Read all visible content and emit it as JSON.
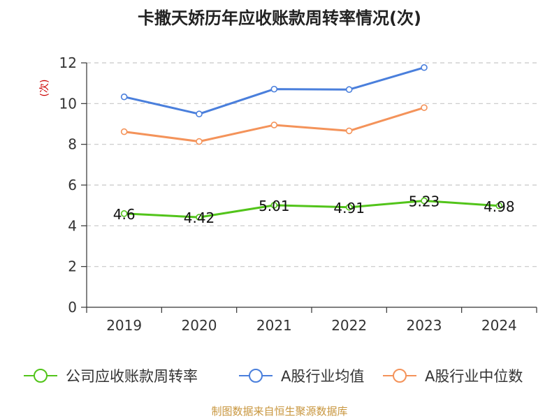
{
  "title": "卡撒天娇历年应收账款周转率情况(次)",
  "source": "制图数据来自恒生聚源数据库",
  "chart_data": {
    "type": "line",
    "title": "卡撒天娇历年应收账款周转率情况(次)",
    "ylabel": "(次)",
    "xlabel": "",
    "categories": [
      "2019",
      "2020",
      "2021",
      "2022",
      "2023",
      "2024"
    ],
    "ylim": [
      0,
      12
    ],
    "yticks": [
      0,
      2,
      4,
      6,
      8,
      10,
      12
    ],
    "grid": true,
    "legend_position": "bottom",
    "series": [
      {
        "name": "公司应收账款周转率",
        "color": "#52c41a",
        "values": [
          4.6,
          4.42,
          5.01,
          4.91,
          5.23,
          4.98
        ],
        "labels": [
          "4.6",
          "4.42",
          "5.01",
          "4.91",
          "5.23",
          "4.98"
        ]
      },
      {
        "name": "A股行业均值",
        "color": "#4a7fdc",
        "values": [
          10.33,
          9.49,
          10.71,
          10.69,
          11.77,
          null
        ]
      },
      {
        "name": "A股行业中位数",
        "color": "#f4935a",
        "values": [
          8.62,
          8.14,
          8.95,
          8.66,
          9.8,
          null
        ]
      }
    ]
  }
}
